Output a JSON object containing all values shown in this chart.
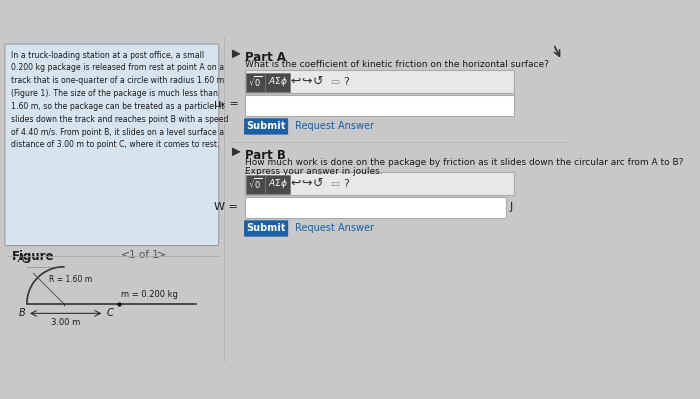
{
  "bg_color": "#c8c8c8",
  "left_panel_bg": "#d6e4f0",
  "left_panel_text": "In a truck-loading station at a post office, a small\n0.200 kg package is released from rest at point A on a\ntrack that is one-quarter of a circle with radius 1.60 m\n(Figure 1). The size of the package is much less than\n1.60 m, so the package can be treated as a particle. It\nslides down the track and reaches point B with a speed\nof 4.40 m/s. From point B, it slides on a level surface a\ndistance of 3.00 m to point C, where it comes to rest.",
  "right_bg": "#c8c8c8",
  "part_a_label": "Part A",
  "part_a_question": "What is the coefficient of kinetic friction on the horizontal surface?",
  "part_b_label": "Part B",
  "part_b_question": "How much work is done on the package by friction as it slides down the circular arc from A to B?",
  "part_b_subtext": "Express your answer in joules.",
  "figure_label": "Figure",
  "figure_nav": "1 of 1",
  "submit_color": "#1a5fa8",
  "submit_text_color": "#ffffff",
  "toolbar_bg": "#555555",
  "input_bg": "#ffffff",
  "mu_label": "μₖ =",
  "W_label": "W =",
  "J_label": "J",
  "radius_label": "R = 1.60 m",
  "mass_label": "m = 0.200 kg",
  "dist_label": "3.00 m"
}
